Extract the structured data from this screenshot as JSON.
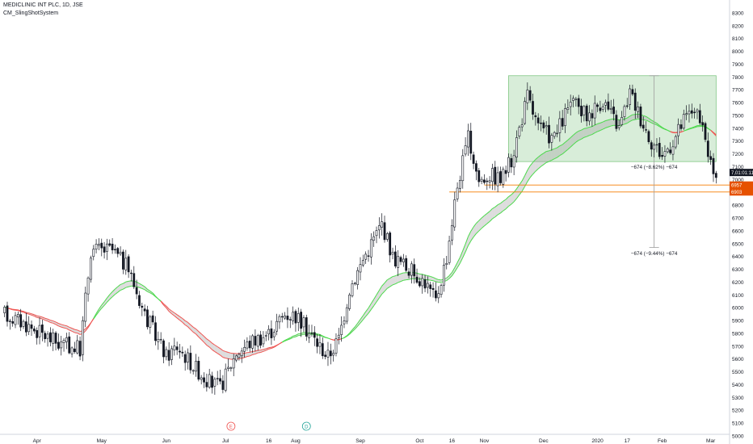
{
  "header": {
    "title": "MEDICLINIC INT PLC, 1D, JSE",
    "indicator": "CM_SlingShotSystem"
  },
  "price_tags": {
    "last_price": "7,01:01:11",
    "level_high": "6957",
    "level_low": "6903"
  },
  "measure_labels": {
    "upper": "−674 (−8.62%) −674",
    "lower": "−674 (−9.44%) −674"
  },
  "event_markers": [
    {
      "letter": "E",
      "date_index": 84,
      "kind": "earnings"
    },
    {
      "letter": "D",
      "date_index": 112,
      "kind": "dividend"
    },
    {
      "letter": "E",
      "date_index": 302,
      "kind": "earnings"
    },
    {
      "letter": "D",
      "date_index": 330,
      "kind": "dividend"
    }
  ],
  "colors": {
    "up": "#131722",
    "down": "#131722",
    "ema_up": "#4cd94c",
    "ema_down": "#ef5350",
    "band_fill": "#9e9e9e",
    "box_fill": "#c8e6c9",
    "box_border": "#81c784",
    "level_line": "#f57c00",
    "tag_bg": "#e65100",
    "last_tag_bg": "#131722"
  },
  "chart_data": {
    "type": "candlestick",
    "y_axis": {
      "side": "right",
      "min": 5000,
      "max": 8350,
      "ticks": [
        8300,
        8200,
        8100,
        8000,
        7900,
        7800,
        7700,
        7600,
        7500,
        7400,
        7300,
        7200,
        7100,
        7000,
        6900,
        6800,
        6700,
        6600,
        6500,
        6400,
        6300,
        6200,
        6100,
        6000,
        5900,
        5800,
        5700,
        5600,
        5500,
        5400,
        5300,
        5200,
        5100,
        5000
      ]
    },
    "x_axis": {
      "labels": [
        {
          "text": "Apr",
          "index": 12
        },
        {
          "text": "May",
          "index": 36
        },
        {
          "text": "Jun",
          "index": 60
        },
        {
          "text": "Jul",
          "index": 82
        },
        {
          "text": "16",
          "index": 98
        },
        {
          "text": "Aug",
          "index": 108
        },
        {
          "text": "Sep",
          "index": 132
        },
        {
          "text": "Oct",
          "index": 154
        },
        {
          "text": "16",
          "index": 166
        },
        {
          "text": "Nov",
          "index": 178
        },
        {
          "text": "Dec",
          "index": 200
        },
        {
          "text": "2020",
          "index": 220
        },
        {
          "text": "17",
          "index": 231
        },
        {
          "text": "Feb",
          "index": 244
        },
        {
          "text": "Mar",
          "index": 262
        }
      ]
    },
    "anchors": [
      [
        0,
        5950
      ],
      [
        8,
        5870
      ],
      [
        20,
        5720
      ],
      [
        28,
        5680
      ],
      [
        32,
        6450
      ],
      [
        40,
        6450
      ],
      [
        46,
        6300
      ],
      [
        52,
        5950
      ],
      [
        60,
        5620
      ],
      [
        64,
        5700
      ],
      [
        70,
        5550
      ],
      [
        76,
        5420
      ],
      [
        80,
        5380
      ],
      [
        86,
        5650
      ],
      [
        92,
        5740
      ],
      [
        98,
        5800
      ],
      [
        104,
        5950
      ],
      [
        108,
        5940
      ],
      [
        114,
        5780
      ],
      [
        120,
        5620
      ],
      [
        124,
        5760
      ],
      [
        128,
        6150
      ],
      [
        134,
        6420
      ],
      [
        140,
        6660
      ],
      [
        144,
        6400
      ],
      [
        150,
        6300
      ],
      [
        156,
        6200
      ],
      [
        160,
        6050
      ],
      [
        164,
        6400
      ],
      [
        168,
        6950
      ],
      [
        172,
        7320
      ],
      [
        176,
        6990
      ],
      [
        180,
        7040
      ],
      [
        184,
        7000
      ],
      [
        188,
        7150
      ],
      [
        194,
        7650
      ],
      [
        198,
        7400
      ],
      [
        204,
        7320
      ],
      [
        210,
        7600
      ],
      [
        216,
        7500
      ],
      [
        222,
        7620
      ],
      [
        228,
        7400
      ],
      [
        232,
        7680
      ],
      [
        236,
        7480
      ],
      [
        240,
        7300
      ],
      [
        244,
        7190
      ],
      [
        248,
        7300
      ],
      [
        252,
        7460
      ],
      [
        256,
        7560
      ],
      [
        260,
        7300
      ],
      [
        264,
        6960
      ]
    ],
    "bar_count": 265,
    "range_box": {
      "from_index": 187,
      "to_index": 266,
      "top": 7810,
      "bottom": 7140
    },
    "levels": [
      6957,
      6903
    ],
    "measure": {
      "at_index": 241,
      "from": 7810,
      "to": 6470
    }
  }
}
